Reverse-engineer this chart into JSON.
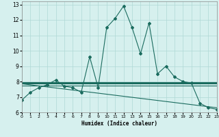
{
  "xlabel": "Humidex (Indice chaleur)",
  "xlim": [
    0,
    23
  ],
  "ylim": [
    6,
    13.2
  ],
  "yticks": [
    6,
    7,
    8,
    9,
    10,
    11,
    12,
    13
  ],
  "xticks": [
    0,
    1,
    2,
    3,
    4,
    5,
    6,
    7,
    8,
    9,
    10,
    11,
    12,
    13,
    14,
    15,
    16,
    17,
    18,
    19,
    20,
    21,
    22,
    23
  ],
  "background_color": "#d6f0ee",
  "grid_color": "#afd8d5",
  "line_color": "#1a6b5e",
  "series": [
    {
      "x": [
        0,
        1,
        2,
        3,
        4,
        5,
        6,
        7,
        8,
        9,
        10,
        11,
        12,
        13,
        14,
        15,
        16,
        17,
        18,
        19,
        20,
        21,
        22,
        23
      ],
      "y": [
        6.8,
        7.3,
        7.6,
        7.8,
        8.1,
        7.7,
        7.6,
        7.3,
        9.6,
        7.6,
        11.5,
        12.1,
        12.9,
        11.5,
        9.8,
        11.8,
        8.5,
        9.0,
        8.3,
        8.0,
        7.9,
        6.6,
        6.3,
        6.2
      ],
      "marker": "D",
      "markersize": 2.0,
      "linewidth": 0.8,
      "linestyle": "-"
    },
    {
      "x": [
        0,
        23
      ],
      "y": [
        7.9,
        7.9
      ],
      "marker": null,
      "markersize": 0,
      "linewidth": 2.2,
      "linestyle": "-"
    },
    {
      "x": [
        0,
        23
      ],
      "y": [
        7.75,
        7.75
      ],
      "marker": null,
      "markersize": 0,
      "linewidth": 0.8,
      "linestyle": "-"
    },
    {
      "x": [
        0,
        23
      ],
      "y": [
        7.85,
        6.3
      ],
      "marker": null,
      "markersize": 0,
      "linewidth": 0.8,
      "linestyle": "-"
    }
  ]
}
